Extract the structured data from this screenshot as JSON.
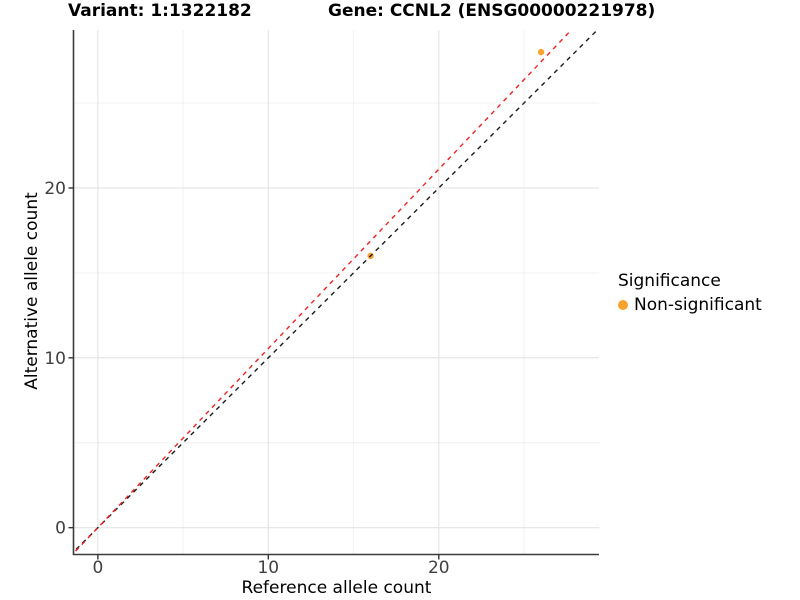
{
  "header": {
    "variant_title": "Variant: 1:1322182",
    "gene_title": "Gene: CCNL2 (ENSG00000221978)"
  },
  "chart_data": {
    "type": "scatter",
    "title": "Variant: 1:1322182    Gene: CCNL2 (ENSG00000221978)",
    "xlabel": "Reference allele count",
    "ylabel": "Alternative allele count",
    "xlim": [
      -1.4,
      29.4
    ],
    "ylim": [
      -1.55,
      29.3
    ],
    "xticks": [
      0,
      10,
      20
    ],
    "yticks": [
      0,
      10,
      20
    ],
    "xminor": [
      5,
      15,
      25
    ],
    "yminor": [
      5,
      15,
      25
    ],
    "grid": true,
    "points": [
      {
        "x": 16,
        "y": 16,
        "significance": "Non-significant"
      },
      {
        "x": 26,
        "y": 28,
        "significance": "Non-significant"
      }
    ],
    "point_color": "#FBA32C",
    "point_radius": 3.2,
    "lines": [
      {
        "name": "identity-line",
        "slope": 1.0,
        "intercept": 0,
        "color": "#1A1A1A",
        "dash": "4.5 4.5"
      },
      {
        "name": "fit-line",
        "slope": 1.055,
        "intercept": 0,
        "color": "#EE2222",
        "dash": "4.5 4.5"
      }
    ],
    "legend": {
      "title": "Significance",
      "position": "right",
      "items": [
        {
          "label": "Non-significant",
          "color": "#FBA32C"
        }
      ]
    },
    "colors": {
      "background": "#FFFFFF",
      "grid_major": "#E4E4E4",
      "grid_minor": "#F0F0F0",
      "axis_line": "#3C3C3C",
      "tick_mark": "#343434",
      "tick_label": "#404040"
    }
  }
}
